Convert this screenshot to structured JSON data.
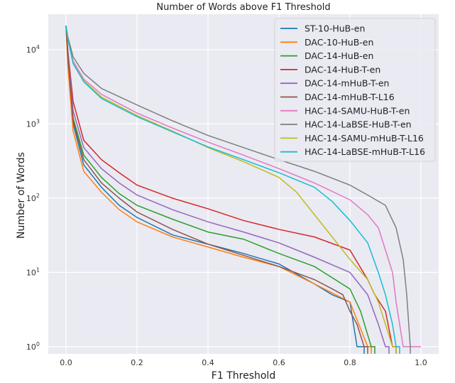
{
  "chart_data": {
    "type": "line",
    "title": "Number of Words above F1 Threshold",
    "xlabel": "F1 Threshold",
    "ylabel": "Number of Words",
    "xlim": [
      -0.05,
      1.05
    ],
    "ylim": [
      0.8,
      30000
    ],
    "yscale": "log",
    "x_ticks": [
      0.0,
      0.2,
      0.4,
      0.6,
      0.8,
      1.0
    ],
    "x_tick_labels": [
      "0.0",
      "0.2",
      "0.4",
      "0.6",
      "0.8",
      "1.0"
    ],
    "y_ticks": [
      1,
      10,
      100,
      1000,
      10000
    ],
    "y_tick_labels": [
      {
        "base": "10",
        "exp": "0"
      },
      {
        "base": "10",
        "exp": "1"
      },
      {
        "base": "10",
        "exp": "2"
      },
      {
        "base": "10",
        "exp": "3"
      },
      {
        "base": "10",
        "exp": "4"
      }
    ],
    "grid": true,
    "background": "#eaeaf2",
    "legend_position": "top-right",
    "series": [
      {
        "name": "ST-10-HuB-en",
        "color": "#1f77b4",
        "points": [
          [
            0,
            21000
          ],
          [
            0.005,
            7000
          ],
          [
            0.02,
            1000
          ],
          [
            0.05,
            280
          ],
          [
            0.1,
            140
          ],
          [
            0.15,
            80
          ],
          [
            0.2,
            55
          ],
          [
            0.3,
            32
          ],
          [
            0.4,
            24
          ],
          [
            0.5,
            18
          ],
          [
            0.6,
            13
          ],
          [
            0.7,
            7
          ],
          [
            0.75,
            5
          ],
          [
            0.8,
            4
          ],
          [
            0.82,
            1
          ],
          [
            0.84,
            1
          ],
          [
            0.84,
            0.5
          ]
        ]
      },
      {
        "name": "DAC-10-HuB-en",
        "color": "#ff7f0e",
        "points": [
          [
            0,
            21000
          ],
          [
            0.005,
            6000
          ],
          [
            0.02,
            800
          ],
          [
            0.05,
            230
          ],
          [
            0.1,
            120
          ],
          [
            0.15,
            70
          ],
          [
            0.2,
            48
          ],
          [
            0.3,
            30
          ],
          [
            0.4,
            22
          ],
          [
            0.5,
            16
          ],
          [
            0.6,
            12
          ],
          [
            0.7,
            7
          ],
          [
            0.8,
            4
          ],
          [
            0.85,
            1
          ],
          [
            0.86,
            1
          ],
          [
            0.86,
            0.5
          ]
        ]
      },
      {
        "name": "DAC-14-HuB-en",
        "color": "#2ca02c",
        "points": [
          [
            0,
            21000
          ],
          [
            0.005,
            9000
          ],
          [
            0.02,
            1200
          ],
          [
            0.05,
            380
          ],
          [
            0.1,
            190
          ],
          [
            0.15,
            115
          ],
          [
            0.2,
            80
          ],
          [
            0.3,
            52
          ],
          [
            0.4,
            35
          ],
          [
            0.5,
            28
          ],
          [
            0.6,
            18
          ],
          [
            0.7,
            12
          ],
          [
            0.8,
            6
          ],
          [
            0.83,
            3
          ],
          [
            0.86,
            1
          ],
          [
            0.87,
            1
          ],
          [
            0.87,
            0.5
          ]
        ]
      },
      {
        "name": "DAC-14-HuB-T-en",
        "color": "#d62728",
        "points": [
          [
            0,
            21000
          ],
          [
            0.005,
            10000
          ],
          [
            0.02,
            2000
          ],
          [
            0.05,
            600
          ],
          [
            0.1,
            330
          ],
          [
            0.15,
            220
          ],
          [
            0.2,
            150
          ],
          [
            0.3,
            100
          ],
          [
            0.4,
            72
          ],
          [
            0.5,
            50
          ],
          [
            0.6,
            38
          ],
          [
            0.7,
            30
          ],
          [
            0.8,
            20
          ],
          [
            0.85,
            8
          ],
          [
            0.87,
            5
          ],
          [
            0.9,
            3
          ],
          [
            0.92,
            1
          ],
          [
            0.93,
            1
          ],
          [
            0.93,
            0.5
          ]
        ]
      },
      {
        "name": "DAC-14-mHuB-T-en",
        "color": "#9467bd",
        "points": [
          [
            0,
            21000
          ],
          [
            0.005,
            10000
          ],
          [
            0.02,
            1500
          ],
          [
            0.05,
            480
          ],
          [
            0.1,
            250
          ],
          [
            0.15,
            160
          ],
          [
            0.2,
            110
          ],
          [
            0.3,
            70
          ],
          [
            0.4,
            48
          ],
          [
            0.5,
            35
          ],
          [
            0.6,
            25
          ],
          [
            0.7,
            16
          ],
          [
            0.8,
            10
          ],
          [
            0.85,
            5
          ],
          [
            0.88,
            2
          ],
          [
            0.9,
            1
          ],
          [
            0.91,
            1
          ],
          [
            0.91,
            0.5
          ]
        ]
      },
      {
        "name": "DAC-14-mHuB-T-L16",
        "color": "#8c564b",
        "points": [
          [
            0,
            21000
          ],
          [
            0.005,
            8500
          ],
          [
            0.02,
            1100
          ],
          [
            0.05,
            330
          ],
          [
            0.1,
            160
          ],
          [
            0.15,
            100
          ],
          [
            0.2,
            65
          ],
          [
            0.3,
            38
          ],
          [
            0.4,
            24
          ],
          [
            0.5,
            17
          ],
          [
            0.6,
            12
          ],
          [
            0.7,
            8
          ],
          [
            0.75,
            6
          ],
          [
            0.78,
            5
          ],
          [
            0.8,
            3
          ],
          [
            0.82,
            2
          ],
          [
            0.84,
            1
          ],
          [
            0.85,
            1
          ],
          [
            0.85,
            0.5
          ]
        ]
      },
      {
        "name": "HAC-14-SAMU-HuB-T-en",
        "color": "#e377c2",
        "points": [
          [
            0,
            21000
          ],
          [
            0.005,
            14000
          ],
          [
            0.02,
            7000
          ],
          [
            0.05,
            4000
          ],
          [
            0.1,
            2500
          ],
          [
            0.2,
            1400
          ],
          [
            0.3,
            880
          ],
          [
            0.4,
            570
          ],
          [
            0.5,
            380
          ],
          [
            0.6,
            250
          ],
          [
            0.7,
            160
          ],
          [
            0.8,
            95
          ],
          [
            0.85,
            60
          ],
          [
            0.88,
            40
          ],
          [
            0.9,
            20
          ],
          [
            0.92,
            10
          ],
          [
            0.93,
            4
          ],
          [
            0.94,
            2
          ],
          [
            0.95,
            1
          ],
          [
            1.0,
            1
          ]
        ]
      },
      {
        "name": "HAC-14-LaBSE-HuB-T-en",
        "color": "#7f7f7f",
        "points": [
          [
            0,
            21000
          ],
          [
            0.005,
            15000
          ],
          [
            0.02,
            8000
          ],
          [
            0.05,
            4800
          ],
          [
            0.1,
            3000
          ],
          [
            0.2,
            1800
          ],
          [
            0.3,
            1100
          ],
          [
            0.4,
            700
          ],
          [
            0.5,
            480
          ],
          [
            0.6,
            330
          ],
          [
            0.7,
            230
          ],
          [
            0.8,
            150
          ],
          [
            0.85,
            110
          ],
          [
            0.9,
            80
          ],
          [
            0.93,
            40
          ],
          [
            0.95,
            15
          ],
          [
            0.96,
            5
          ],
          [
            0.97,
            1
          ],
          [
            0.97,
            0.5
          ]
        ]
      },
      {
        "name": "HAC-14-SAMU-mHuB-T-L16",
        "color": "#bcbd22",
        "points": [
          [
            0,
            21000
          ],
          [
            0.005,
            14000
          ],
          [
            0.02,
            6500
          ],
          [
            0.05,
            3800
          ],
          [
            0.1,
            2300
          ],
          [
            0.2,
            1300
          ],
          [
            0.3,
            800
          ],
          [
            0.4,
            480
          ],
          [
            0.5,
            310
          ],
          [
            0.6,
            190
          ],
          [
            0.65,
            120
          ],
          [
            0.7,
            60
          ],
          [
            0.75,
            30
          ],
          [
            0.8,
            15
          ],
          [
            0.85,
            8
          ],
          [
            0.88,
            4
          ],
          [
            0.9,
            2
          ],
          [
            0.92,
            1
          ],
          [
            0.93,
            1
          ],
          [
            0.93,
            0.5
          ]
        ]
      },
      {
        "name": "HAC-14-LaBSE-mHuB-T-L16",
        "color": "#17becf",
        "points": [
          [
            0,
            21000
          ],
          [
            0.005,
            14000
          ],
          [
            0.02,
            6500
          ],
          [
            0.05,
            3700
          ],
          [
            0.1,
            2200
          ],
          [
            0.2,
            1250
          ],
          [
            0.3,
            780
          ],
          [
            0.4,
            490
          ],
          [
            0.5,
            330
          ],
          [
            0.6,
            220
          ],
          [
            0.7,
            140
          ],
          [
            0.75,
            90
          ],
          [
            0.8,
            50
          ],
          [
            0.85,
            25
          ],
          [
            0.88,
            10
          ],
          [
            0.9,
            5
          ],
          [
            0.92,
            2
          ],
          [
            0.93,
            1
          ],
          [
            0.94,
            1
          ],
          [
            0.94,
            0.5
          ]
        ]
      }
    ]
  }
}
